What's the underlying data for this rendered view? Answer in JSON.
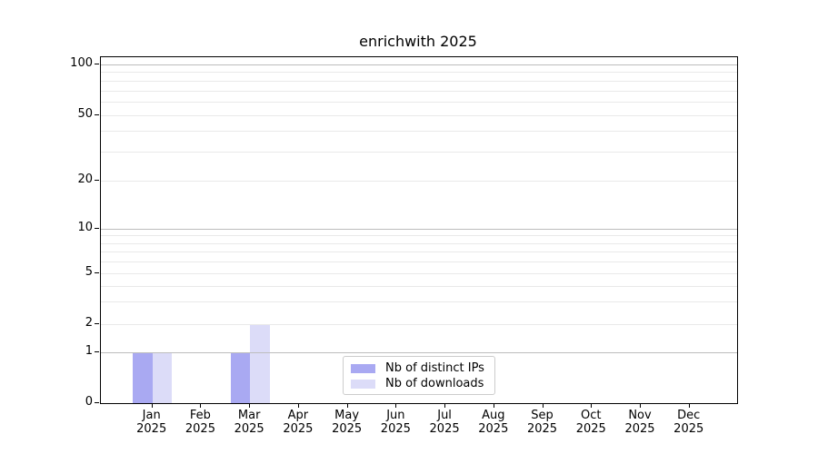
{
  "page": {
    "background": "#ffffff"
  },
  "chart_data": {
    "type": "bar",
    "title": "enrichwith 2025",
    "categories": [
      "Jan",
      "Feb",
      "Mar",
      "Apr",
      "May",
      "Jun",
      "Jul",
      "Aug",
      "Sep",
      "Oct",
      "Nov",
      "Dec"
    ],
    "year_label": "2025",
    "series": [
      {
        "name": "Nb of distinct IPs",
        "color": "#a9a9f2",
        "values": [
          1,
          0,
          1,
          0,
          0,
          0,
          0,
          0,
          0,
          0,
          0,
          0
        ]
      },
      {
        "name": "Nb of downloads",
        "color": "#dcdcf8",
        "values": [
          1,
          0,
          2,
          0,
          0,
          0,
          0,
          0,
          0,
          0,
          0,
          0
        ]
      }
    ],
    "yaxis": {
      "scale": "symlog",
      "ticks": [
        {
          "value": 0,
          "label": "0"
        },
        {
          "value": 1,
          "label": "1"
        },
        {
          "value": 2,
          "label": "2"
        },
        {
          "value": 5,
          "label": "5"
        },
        {
          "value": 10,
          "label": "10"
        },
        {
          "value": 20,
          "label": "20"
        },
        {
          "value": 50,
          "label": "50"
        },
        {
          "value": 100,
          "label": "100"
        }
      ],
      "ylim": [
        0,
        110
      ]
    },
    "xlabel": "",
    "ylabel": "",
    "grid": {
      "on": true,
      "major_color": "#bdbdbd",
      "minor_color": "#e9e9e9"
    },
    "legend": {
      "position": "bottom-center-inside",
      "border_color": "#cccccc"
    }
  }
}
